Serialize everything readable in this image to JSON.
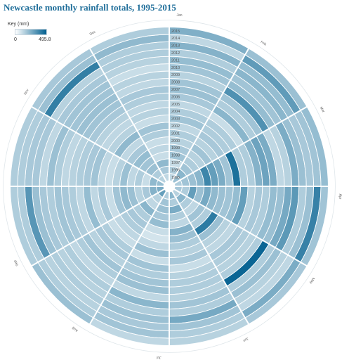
{
  "page": {
    "title": "Newcastle monthly rainfall totals, 1995-2015"
  },
  "key": {
    "label": "Key (mm)",
    "min_label": "0",
    "max_label": "495.8",
    "color_low": "#ffffff",
    "color_high": "#005f8f"
  },
  "chart_data": {
    "type": "heatmap",
    "layout": "radial (months as sectors clockwise from top, years as rings from centre outward)",
    "title": "Newcastle monthly rainfall totals, 1995-2015",
    "unit": "mm",
    "color_scale": {
      "min": 0,
      "max": 495.8
    },
    "months": [
      "Jan",
      "Feb",
      "Mar",
      "Apr",
      "May",
      "Jun",
      "Jul",
      "Aug",
      "Sep",
      "Oct",
      "Nov",
      "Dec"
    ],
    "years": [
      "1995",
      "1996",
      "1997",
      "1998",
      "1999",
      "2000",
      "2001",
      "2002",
      "2003",
      "2004",
      "2005",
      "2006",
      "2007",
      "2008",
      "2009",
      "2010",
      "2011",
      "2012",
      "2013",
      "2014",
      "2015"
    ],
    "values": [
      [
        40,
        90,
        60,
        70,
        50,
        120,
        60,
        200,
        150,
        100,
        50,
        40
      ],
      [
        60,
        120,
        80,
        60,
        120,
        60,
        80,
        50,
        130,
        110,
        60,
        70
      ],
      [
        30,
        80,
        90,
        200,
        60,
        150,
        90,
        40,
        70,
        30,
        90,
        110
      ],
      [
        80,
        60,
        120,
        90,
        40,
        60,
        70,
        120,
        50,
        60,
        80,
        30
      ],
      [
        70,
        50,
        300,
        160,
        80,
        40,
        100,
        60,
        90,
        40,
        100,
        40
      ],
      [
        50,
        80,
        200,
        110,
        60,
        130,
        30,
        70,
        110,
        90,
        70,
        30
      ],
      [
        60,
        50,
        150,
        90,
        350,
        90,
        20,
        60,
        80,
        50,
        40,
        60
      ],
      [
        40,
        70,
        80,
        80,
        90,
        60,
        40,
        40,
        30,
        30,
        110,
        80
      ],
      [
        80,
        60,
        400,
        100,
        50,
        50,
        90,
        30,
        70,
        40,
        50,
        30
      ],
      [
        60,
        60,
        60,
        200,
        40,
        70,
        30,
        60,
        40,
        80,
        40,
        50
      ],
      [
        40,
        30,
        60,
        50,
        70,
        30,
        80,
        70,
        100,
        70,
        50,
        40
      ],
      [
        70,
        120,
        130,
        70,
        60,
        50,
        60,
        50,
        40,
        60,
        70,
        60
      ],
      [
        90,
        60,
        180,
        60,
        50,
        60,
        80,
        80,
        60,
        50,
        80,
        70
      ],
      [
        80,
        80,
        150,
        100,
        60,
        60,
        90,
        60,
        70,
        40,
        90,
        40
      ],
      [
        50,
        250,
        40,
        90,
        460,
        50,
        40,
        40,
        80,
        60,
        80,
        50
      ],
      [
        80,
        100,
        50,
        160,
        60,
        80,
        120,
        60,
        60,
        90,
        80,
        30
      ],
      [
        100,
        80,
        150,
        220,
        90,
        60,
        60,
        50,
        70,
        40,
        70,
        50
      ],
      [
        60,
        120,
        90,
        60,
        50,
        160,
        90,
        60,
        90,
        70,
        50,
        60
      ],
      [
        130,
        100,
        70,
        90,
        40,
        80,
        70,
        50,
        230,
        70,
        330,
        60
      ],
      [
        40,
        210,
        80,
        320,
        150,
        60,
        80,
        60,
        60,
        60,
        90,
        110
      ],
      [
        140,
        90,
        100,
        80,
        70,
        50,
        40,
        90,
        60,
        60,
        70,
        60
      ]
    ]
  }
}
